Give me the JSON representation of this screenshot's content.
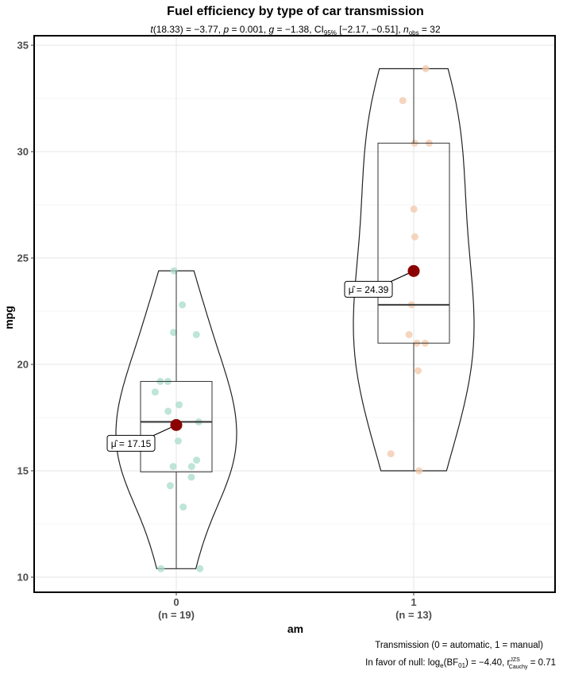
{
  "chart_data": {
    "type": "violin-box-scatter",
    "title": "Fuel efficiency by type of car transmission",
    "subtitle": {
      "t_stat": "t",
      "t_df": "(18.33) = −3.77, ",
      "p_label": "p",
      "p_value": " = 0.001, ",
      "g_label": "g",
      "g_value": " = −1.38, CI",
      "ci_sub": "95%",
      "ci_value": " [−2.17, −0.51], ",
      "n_label": "n",
      "n_sub": "obs",
      "n_value": " = 32"
    },
    "xlabel": "am",
    "ylabel": "mpg",
    "ylim": [
      10,
      35
    ],
    "yticks": [
      10,
      15,
      20,
      25,
      30,
      35
    ],
    "grid": true,
    "groups": [
      {
        "category": "0",
        "n_label": "(n = 19)",
        "color": "#a8dcc9",
        "mean": 17.15,
        "mean_label": "μ̂ = 17.15",
        "min": 10.4,
        "q1": 14.95,
        "median": 17.3,
        "q3": 19.2,
        "max": 24.4,
        "points": [
          21.4,
          18.7,
          18.1,
          14.3,
          24.4,
          22.8,
          19.2,
          17.8,
          16.4,
          17.3,
          15.2,
          10.4,
          10.4,
          14.7,
          21.5,
          15.5,
          15.2,
          13.3,
          19.2
        ]
      },
      {
        "category": "1",
        "n_label": "(n = 13)",
        "color": "#f3c7a8",
        "mean": 24.39,
        "mean_label": "μ̂ = 24.39",
        "min": 15.0,
        "q1": 21.0,
        "median": 22.8,
        "q3": 30.4,
        "max": 33.9,
        "points": [
          21.0,
          21.0,
          22.8,
          32.4,
          30.4,
          33.9,
          27.3,
          26.0,
          30.4,
          15.8,
          19.7,
          15.0,
          21.4
        ]
      }
    ],
    "caption_line1": "Transmission (0 = automatic, 1 = manual)",
    "caption_line2_prefix": "In favor of null: log",
    "caption_log_sub": "e",
    "caption_bf": "(BF",
    "caption_bf_sub": "01",
    "caption_bf_value": ") = −4.40, r",
    "caption_r_sup": "JZS",
    "caption_r_sub": "Cauchy",
    "caption_r_value": " = 0.71",
    "mean_color": "#8b0000",
    "line_color": "#333333"
  }
}
